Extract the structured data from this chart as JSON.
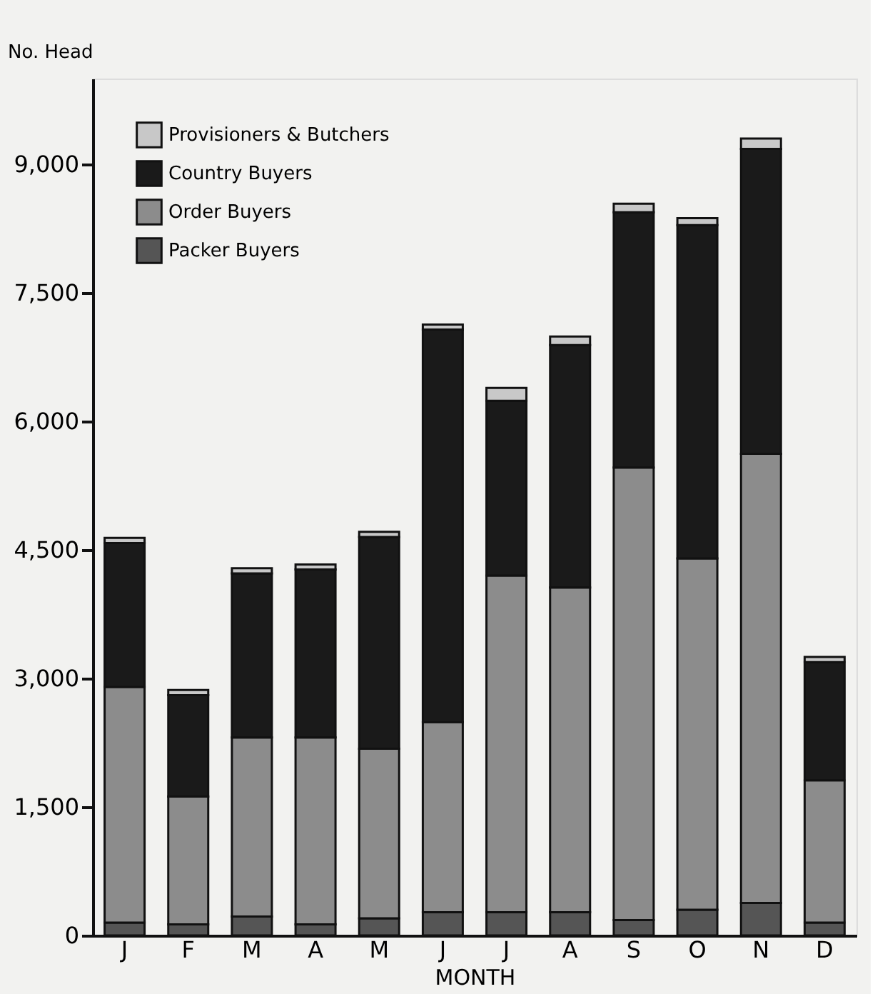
{
  "chart_data": {
    "type": "bar",
    "stacked": true,
    "ylabel": "No. Head",
    "xlabel": "MONTH",
    "categories": [
      "J",
      "F",
      "M",
      "A",
      "M",
      "J",
      "J",
      "A",
      "S",
      "O",
      "N",
      "D"
    ],
    "series": [
      {
        "name": "Packer Buyers",
        "color": "#555555",
        "values": [
          150,
          130,
          220,
          130,
          200,
          270,
          270,
          270,
          180,
          300,
          380,
          150
        ]
      },
      {
        "name": "Order Buyers",
        "color": "#8c8c8c",
        "values": [
          2750,
          1490,
          2090,
          2180,
          1980,
          2220,
          3930,
          3790,
          5280,
          4100,
          5240,
          1660
        ]
      },
      {
        "name": "Country Buyers",
        "color": "#1a1a1a",
        "values": [
          1680,
          1185,
          1915,
          1960,
          2470,
          4580,
          2040,
          2830,
          2980,
          3890,
          3560,
          1380
        ]
      },
      {
        "name": "Provisioners & Butchers",
        "color": "#c8c8c8",
        "values": [
          60,
          60,
          60,
          60,
          60,
          60,
          150,
          100,
          100,
          80,
          120,
          60
        ]
      }
    ],
    "ylim": [
      0,
      10000
    ],
    "yticks": [
      0,
      {
        "value": 1500,
        "label": "1,500"
      },
      {
        "value": 3000,
        "label": "3,000"
      },
      {
        "value": 4500,
        "label": "4,500"
      },
      {
        "value": 6000,
        "label": "6,000"
      },
      {
        "value": 7500,
        "label": "7,500"
      },
      {
        "value": 9000,
        "label": "9,000"
      }
    ],
    "grid": false,
    "legend": "top left"
  }
}
